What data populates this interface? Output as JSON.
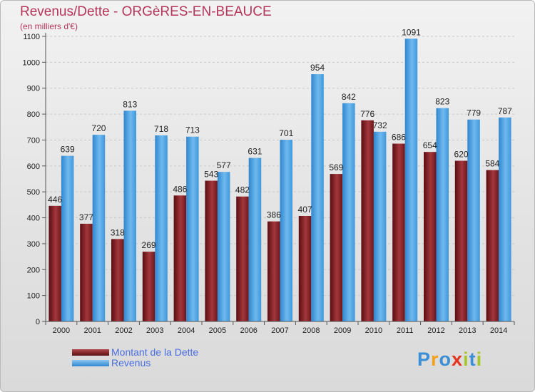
{
  "title": "Revenus/Dette - ORGèRES-EN-BEAUCE",
  "subtitle": "(en milliers d'€)",
  "logo": {
    "letters": [
      "P",
      "r",
      "o",
      "x",
      "i",
      "t",
      "i"
    ],
    "colors": [
      "#3a8fd6",
      "#f2a11f",
      "#3a8fd6",
      "#e8321e",
      "#a7c62a",
      "#3a8fd6",
      "#a7c62a"
    ]
  },
  "chart_data": {
    "type": "bar",
    "categories": [
      "2000",
      "2001",
      "2002",
      "2003",
      "2004",
      "2005",
      "2006",
      "2007",
      "2008",
      "2009",
      "2010",
      "2011",
      "2012",
      "2013",
      "2014"
    ],
    "series": [
      {
        "name": "Montant de la Dette",
        "color": "#7c1e22",
        "values": [
          446,
          377,
          318,
          269,
          486,
          543,
          482,
          386,
          407,
          569,
          776,
          686,
          654,
          620,
          584
        ],
        "labels": [
          "446",
          "377",
          "318",
          "269",
          "486",
          "543",
          "482",
          "386",
          "407",
          "569",
          "776",
          "686",
          "654",
          "620",
          "584"
        ]
      },
      {
        "name": "Revenus",
        "color": "#4aa2e5",
        "values": [
          639,
          720,
          813,
          718,
          713,
          577,
          631,
          701,
          954,
          842,
          732,
          1091,
          823,
          779,
          787
        ],
        "labels": [
          "639",
          "720",
          "813",
          "718",
          "713",
          "577",
          "631",
          "701",
          "954",
          "842",
          "732",
          "1091",
          "823",
          "779",
          "787"
        ]
      }
    ],
    "yticks": [
      "0",
      "100",
      "200",
      "300",
      "400",
      "500",
      "600",
      "700",
      "800",
      "900",
      "1000",
      "1100"
    ],
    "ylim": [
      0,
      1100
    ],
    "grid": true,
    "legend_position": "bottom-left"
  }
}
